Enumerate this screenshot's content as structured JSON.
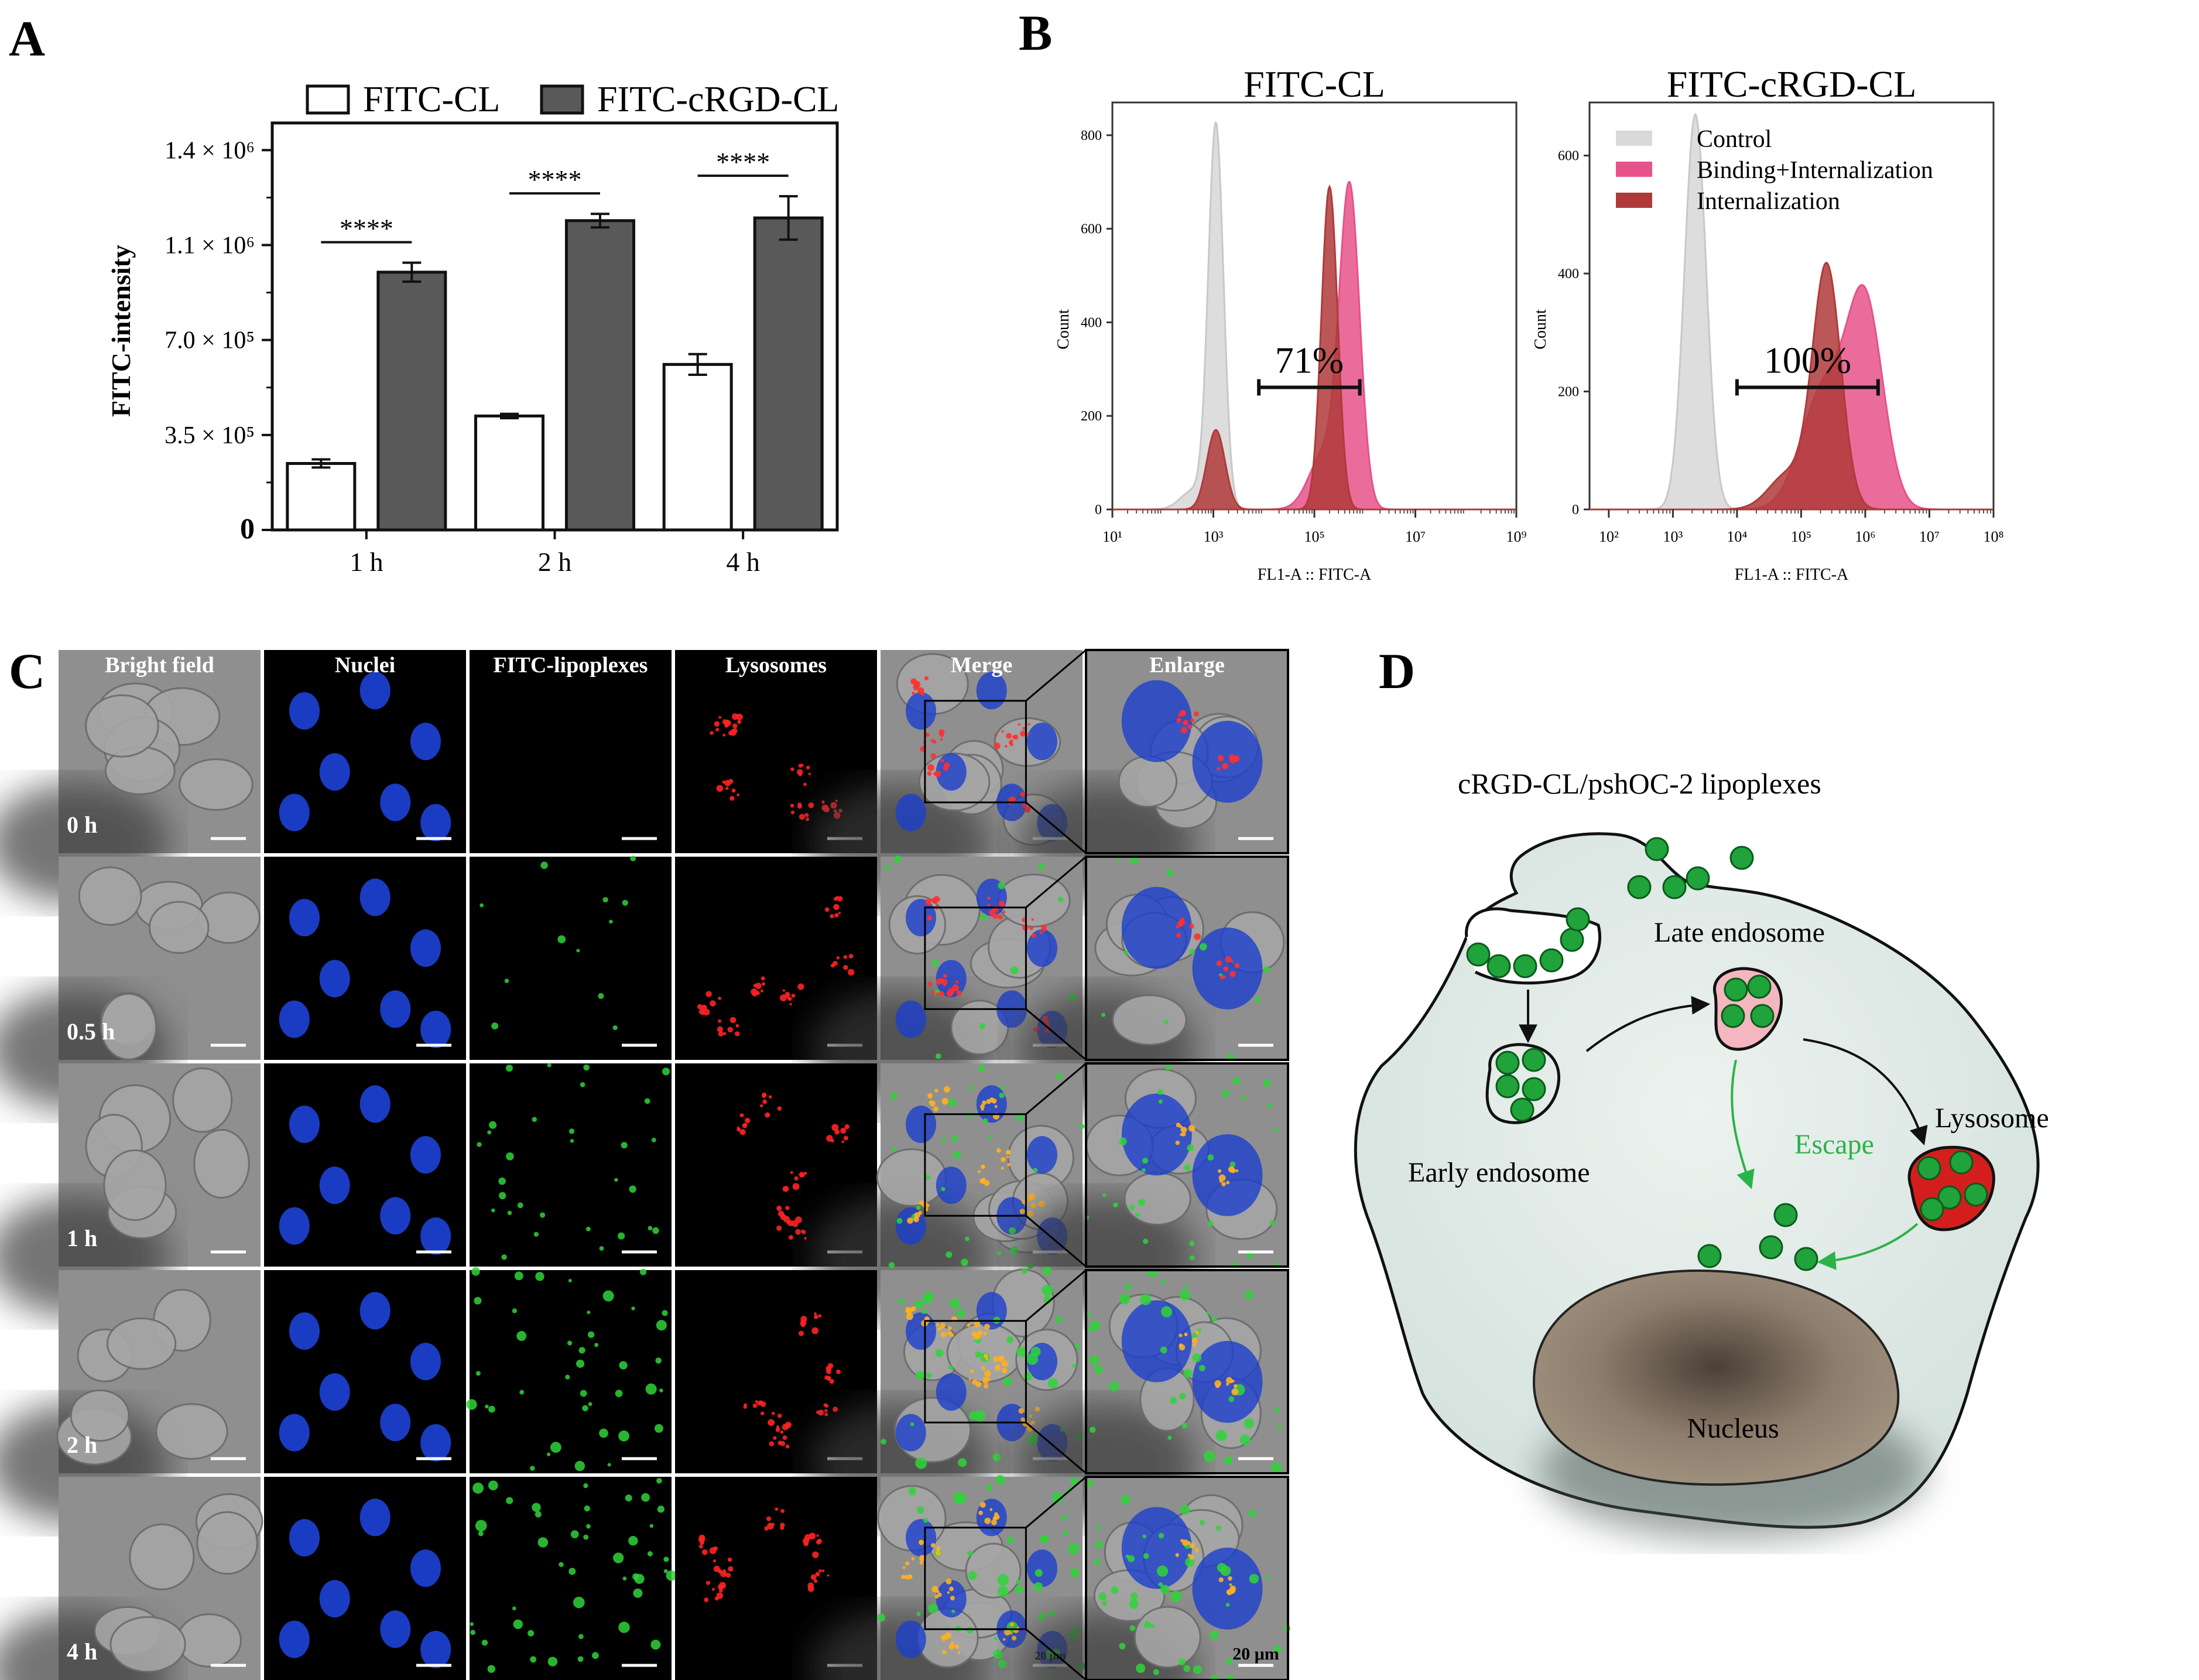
{
  "panels": {
    "A": {
      "letter": "A",
      "chart_data": {
        "type": "bar",
        "categories": [
          "1 h",
          "2 h",
          "4 h"
        ],
        "series": [
          {
            "name": "FITC-CL",
            "values": [
              245000,
              420000,
              610000
            ],
            "errors": [
              15000,
              8000,
              38000
            ],
            "color": "#ffffff"
          },
          {
            "name": "FITC-cRGD-CL",
            "values": [
              950000,
              1140000,
              1150000
            ],
            "errors": [
              35000,
              25000,
              80000
            ],
            "color": "#595959"
          }
        ],
        "ylabel": "FITC-intensity",
        "ylim": [
          0,
          1500000
        ],
        "yticks": [
          {
            "value": 0,
            "label": "0"
          },
          {
            "value": 350000,
            "label": "3.5 × 10⁵"
          },
          {
            "value": 700000,
            "label": "7.0 × 10⁵"
          },
          {
            "value": 1050000,
            "label": "1.1 × 10⁶"
          },
          {
            "value": 1400000,
            "label": "1.4 × 10⁶"
          }
        ],
        "significance": [
          "****",
          "****",
          "****"
        ],
        "legend_position": "top"
      }
    },
    "B": {
      "letter": "B",
      "plots": [
        {
          "title": "FITC-CL",
          "percent_label": "71%",
          "ylabel": "Count",
          "xlabel": "FL1-A :: FITC-A",
          "yticks": [
            0,
            200,
            400,
            600,
            800
          ],
          "ymax": 870,
          "xmin_exp": 1,
          "xmax_exp": 9,
          "xticks": [
            {
              "e": 1,
              "label": "10¹"
            },
            {
              "e": 3,
              "label": "10³"
            },
            {
              "e": 5,
              "label": "10⁵"
            },
            {
              "e": 7,
              "label": "10⁷"
            },
            {
              "e": 9,
              "label": "10⁹"
            }
          ],
          "gate": [
            3.9,
            5.9
          ],
          "curves": [
            {
              "series": "Control",
              "peaks": [
                [
                  3.05,
                  820,
                  0.15
                ],
                [
                  2.6,
                  40,
                  0.25
                ]
              ]
            },
            {
              "series": "Binding+Internalization",
              "peaks": [
                [
                  5.7,
                  670,
                  0.2
                ],
                [
                  5.2,
                  120,
                  0.3
                ]
              ]
            },
            {
              "series": "Internalization",
              "peaks": [
                [
                  5.3,
                  690,
                  0.16
                ],
                [
                  3.05,
                  170,
                  0.18
                ]
              ]
            }
          ]
        },
        {
          "title": "FITC-cRGD-CL",
          "percent_label": "100%",
          "ylabel": "Count",
          "xlabel": "FL1-A :: FITC-A",
          "yticks": [
            0,
            200,
            400,
            600
          ],
          "ymax": 690,
          "xmin_exp": 1.7,
          "xmax_exp": 8,
          "xticks": [
            {
              "e": 2,
              "label": "10²"
            },
            {
              "e": 3,
              "label": "10³"
            },
            {
              "e": 4,
              "label": "10⁴"
            },
            {
              "e": 5,
              "label": "10⁵"
            },
            {
              "e": 6,
              "label": "10⁶"
            },
            {
              "e": 7,
              "label": "10⁷"
            },
            {
              "e": 8,
              "label": "10⁸"
            }
          ],
          "gate": [
            4.0,
            6.2
          ],
          "curves": [
            {
              "series": "Control",
              "peaks": [
                [
                  3.35,
                  670,
                  0.17
                ]
              ]
            },
            {
              "series": "Binding+Internalization",
              "peaks": [
                [
                  6.0,
                  340,
                  0.28
                ],
                [
                  5.35,
                  200,
                  0.35
                ]
              ]
            },
            {
              "series": "Internalization",
              "peaks": [
                [
                  5.4,
                  410,
                  0.22
                ],
                [
                  4.8,
                  60,
                  0.3
                ]
              ]
            }
          ]
        }
      ],
      "legend": [
        {
          "label": "Control",
          "color": "#d9d9d9"
        },
        {
          "label": "Binding+Internalization",
          "color": "#e6528a"
        },
        {
          "label": "Internalization",
          "color": "#b03a3a"
        }
      ]
    },
    "C": {
      "letter": "C",
      "columns": [
        "Bright field",
        "Nuclei",
        "FITC-lipoplexes",
        "Lysosomes",
        "Merge",
        "Enlarge"
      ],
      "rows": [
        "0 h",
        "0.5 h",
        "1 h",
        "2 h",
        "4 h"
      ],
      "scale_bar": "20 μm"
    },
    "D": {
      "letter": "D",
      "title": "cRGD-CL/pshOC-2 lipoplexes",
      "labels": {
        "late_endosome": "Late endosome",
        "early_endosome": "Early endosome",
        "lysosome": "Lysosome",
        "escape": "Escape",
        "nucleus": "Nucleus"
      }
    }
  },
  "colors": {
    "cell_fill": "#dfe9e5",
    "nucleus_fill": "#8b7a6a",
    "particle": "#1fa33a",
    "lysosome_fill": "#d41e1e",
    "late_endosome_fill": "#f4b6bf",
    "escape": "#2bb34a"
  }
}
